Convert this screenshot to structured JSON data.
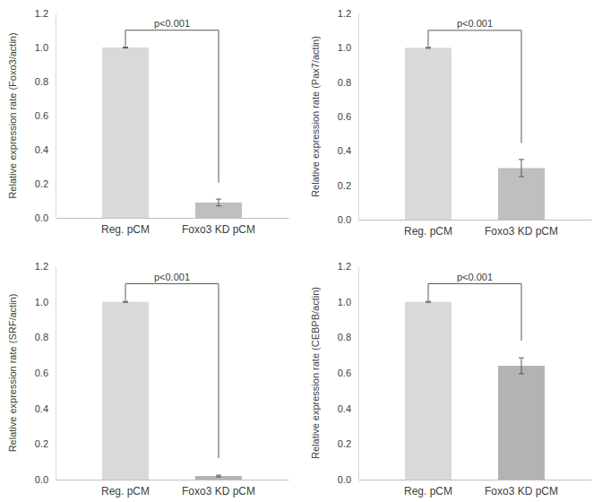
{
  "chart_data": [
    {
      "type": "bar",
      "ylabel": "Relative expression rate (Foxo3/actin)",
      "categories": [
        "Reg. pCM",
        "Foxo3 KD pCM"
      ],
      "values": [
        1.0,
        0.09
      ],
      "errors": [
        0.003,
        0.02
      ],
      "colors": [
        "#d9d9d9",
        "#bfbfbf"
      ],
      "annotation": "p<0.001",
      "ylim": [
        0,
        1.2
      ],
      "yticks": [
        {
          "value": 0,
          "label": "0.0"
        },
        {
          "value": 0.2,
          "label": "0.2"
        },
        {
          "value": 0.4,
          "label": "0.4"
        },
        {
          "value": 0.6,
          "label": "0.6"
        },
        {
          "value": 0.8,
          "label": "0.8"
        },
        {
          "value": 1,
          "label": "1.0"
        },
        {
          "value": 1.2,
          "label": "1.2"
        }
      ]
    },
    {
      "type": "bar",
      "ylabel": "Relative expression rate (Pax7/actin)",
      "categories": [
        "Reg. pCM",
        "Foxo3 KD pCM"
      ],
      "values": [
        1.0,
        0.3
      ],
      "errors": [
        0.003,
        0.05
      ],
      "colors": [
        "#d9d9d9",
        "#bfbfbf"
      ],
      "annotation": "p<0.001",
      "ylim": [
        0,
        1.2
      ],
      "yticks": [
        {
          "value": 0,
          "label": "0.0"
        },
        {
          "value": 0.2,
          "label": "0.2"
        },
        {
          "value": 0.4,
          "label": "0.4"
        },
        {
          "value": 0.6,
          "label": "0.6"
        },
        {
          "value": 0.8,
          "label": "0.8"
        },
        {
          "value": 1,
          "label": "1.0"
        },
        {
          "value": 1.2,
          "label": "1.2"
        }
      ]
    },
    {
      "type": "bar",
      "ylabel": "Relative expression rate (SRF/actin)",
      "categories": [
        "Reg. pCM",
        "Foxo3 KD pCM"
      ],
      "values": [
        1.0,
        0.02
      ],
      "errors": [
        0.003,
        0.005
      ],
      "colors": [
        "#d9d9d9",
        "#b3b3b3"
      ],
      "annotation": "p<0.001",
      "ylim": [
        0,
        1.2
      ],
      "yticks": [
        {
          "value": 0,
          "label": "0.0"
        },
        {
          "value": 0.2,
          "label": "0.2"
        },
        {
          "value": 0.4,
          "label": "0.4"
        },
        {
          "value": 0.6,
          "label": "0.6"
        },
        {
          "value": 0.8,
          "label": "0.8"
        },
        {
          "value": 1,
          "label": "1.0"
        },
        {
          "value": 1.2,
          "label": "1.2"
        }
      ]
    },
    {
      "type": "bar",
      "ylabel": "Relative expression rate (CEBPB/actin)",
      "categories": [
        "Reg. pCM",
        "Foxo3 KD pCM"
      ],
      "values": [
        1.0,
        0.64
      ],
      "errors": [
        0.003,
        0.045
      ],
      "colors": [
        "#d9d9d9",
        "#b3b3b3"
      ],
      "annotation": "p<0.001",
      "ylim": [
        0,
        1.2
      ],
      "yticks": [
        {
          "value": 0,
          "label": "0.0"
        },
        {
          "value": 0.2,
          "label": "0.2"
        },
        {
          "value": 0.4,
          "label": "0.4"
        },
        {
          "value": 0.6,
          "label": "0.6"
        },
        {
          "value": 0.8,
          "label": "0.8"
        },
        {
          "value": 1,
          "label": "1.0"
        },
        {
          "value": 1.2,
          "label": "1.2"
        }
      ]
    }
  ]
}
